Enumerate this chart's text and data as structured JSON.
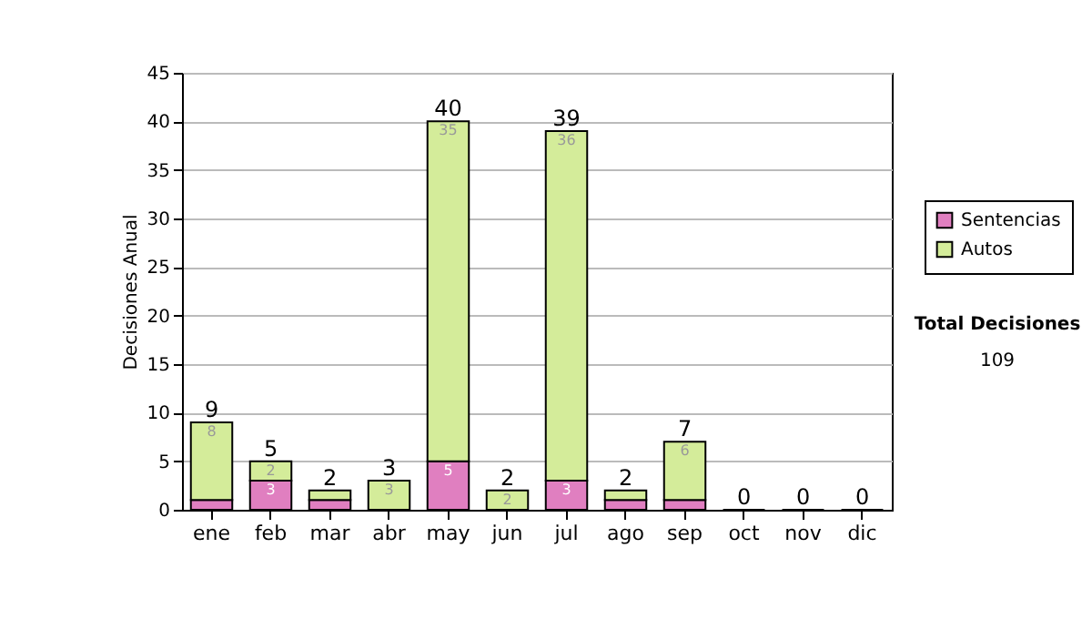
{
  "chart_data": {
    "type": "bar",
    "stacked": true,
    "ylabel": "Decisiones Anual",
    "categories": [
      "ene",
      "feb",
      "mar",
      "abr",
      "may",
      "jun",
      "jul",
      "ago",
      "sep",
      "oct",
      "nov",
      "dic"
    ],
    "series": [
      {
        "name": "Sentencias",
        "color": "#e07fc0",
        "values": [
          1,
          3,
          1,
          0,
          5,
          0,
          3,
          1,
          1,
          0,
          0,
          0
        ],
        "value_labels": [
          null,
          "3",
          null,
          null,
          "5",
          null,
          "3",
          null,
          null,
          null,
          null,
          null
        ]
      },
      {
        "name": "Autos",
        "color": "#d4ec9a",
        "values": [
          8,
          2,
          1,
          3,
          35,
          2,
          36,
          1,
          6,
          0,
          0,
          0
        ],
        "value_labels": [
          "8",
          "2",
          null,
          "3",
          "35",
          "2",
          "36",
          null,
          "6",
          null,
          null,
          null
        ]
      }
    ],
    "totals": [
      "9",
      "5",
      "2",
      "3",
      "40",
      "2",
      "39",
      "2",
      "7",
      "0",
      "0",
      "0"
    ],
    "ylim": [
      0,
      45
    ],
    "yticks": [
      0,
      5,
      10,
      15,
      20,
      25,
      30,
      35,
      40,
      45
    ],
    "grid": "y",
    "legend": "right",
    "annotations": [
      "Total Decisiones",
      "109"
    ]
  }
}
